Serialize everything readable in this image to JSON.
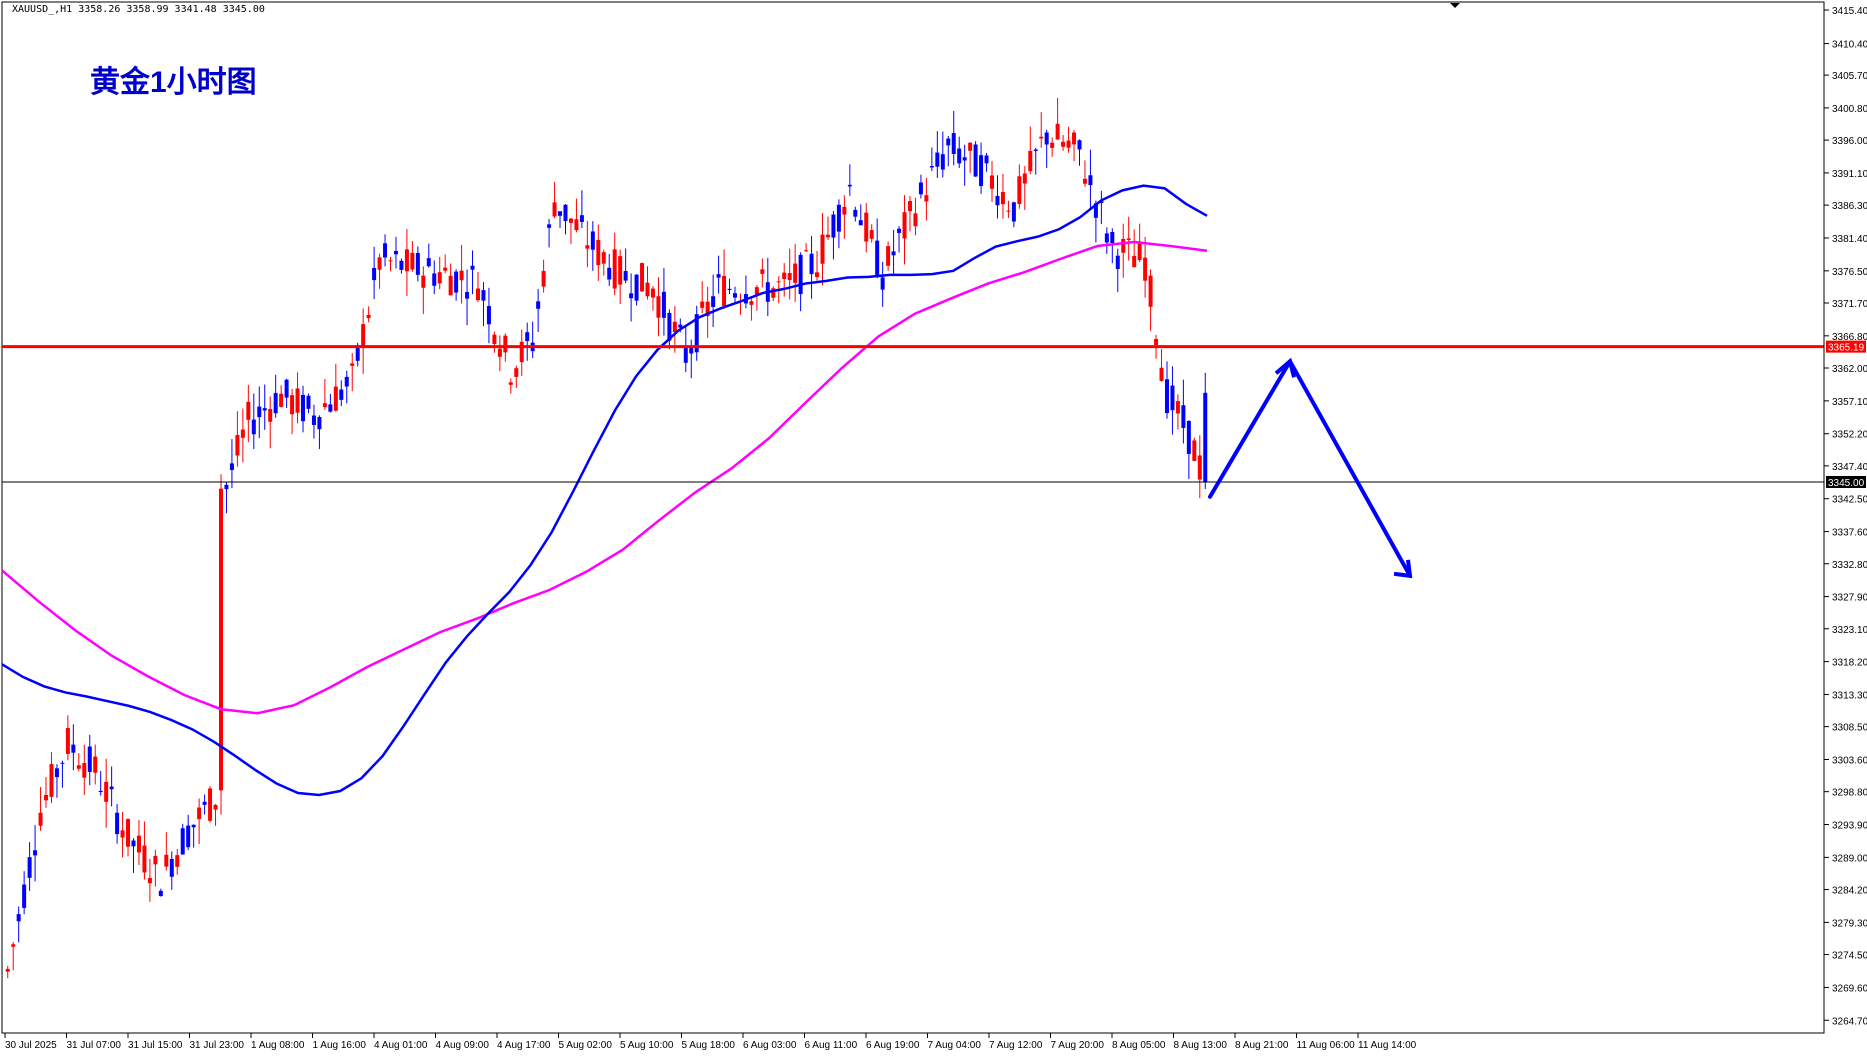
{
  "header": {
    "symbol_info": "XAUUSD_,H1  3358.26 3358.99 3341.48 3345.00",
    "overlay_title": "黄金1小时图"
  },
  "colors": {
    "bull": "#ff0000",
    "bear": "#0000ff",
    "ma_fast": "#0000ff",
    "ma_slow": "#ff00ff",
    "resistance": "#ff0000",
    "current_price_line": "#000000",
    "forecast_arrow": "#0000ff",
    "title_color": "#0000cc",
    "axis_text": "#000000"
  },
  "chart_data": {
    "type": "candlestick",
    "ylim": [
      3262.8,
      3416.6
    ],
    "y_ticks": [
      "3415.40",
      "3410.40",
      "3405.70",
      "3400.80",
      "3396.00",
      "3391.10",
      "3386.30",
      "3381.40",
      "3376.50",
      "3371.70",
      "3366.80",
      "3362.00",
      "3357.10",
      "3352.20",
      "3347.40",
      "3342.50",
      "3337.60",
      "3332.80",
      "3327.90",
      "3323.10",
      "3318.20",
      "3313.30",
      "3308.50",
      "3303.60",
      "3298.80",
      "3293.90",
      "3289.00",
      "3284.20",
      "3279.30",
      "3274.50",
      "3269.60",
      "3264.70"
    ],
    "x_ticks": [
      "30 Jul 2025",
      "31 Jul 07:00",
      "31 Jul 15:00",
      "31 Jul 23:00",
      "1 Aug 08:00",
      "1 Aug 16:00",
      "4 Aug 01:00",
      "4 Aug 09:00",
      "4 Aug 17:00",
      "5 Aug 02:00",
      "5 Aug 10:00",
      "5 Aug 18:00",
      "6 Aug 03:00",
      "6 Aug 11:00",
      "6 Aug 19:00",
      "7 Aug 04:00",
      "7 Aug 12:00",
      "7 Aug 20:00",
      "8 Aug 05:00",
      "8 Aug 13:00",
      "8 Aug 21:00",
      "11 Aug 06:00",
      "11 Aug 14:00"
    ],
    "resistance_level": 3365.19,
    "resistance_label": "3365.19",
    "current_price": 3345.0,
    "current_price_label": "3345.00",
    "ma_fast": [
      3317.8,
      3315.9,
      3314.5,
      3313.6,
      3313.0,
      3312.3,
      3311.6,
      3310.7,
      3309.5,
      3308.1,
      3306.3,
      3304.2,
      3302.0,
      3300.0,
      3298.6,
      3298.3,
      3298.9,
      3300.8,
      3304.1,
      3308.6,
      3313.4,
      3318.1,
      3322.0,
      3325.4,
      3328.6,
      3332.6,
      3337.5,
      3343.5,
      3349.7,
      3355.7,
      3360.8,
      3364.7,
      3367.6,
      3369.6,
      3370.9,
      3372.0,
      3373.2,
      3373.8,
      3374.6,
      3375.0,
      3375.5,
      3375.6,
      3375.9,
      3375.9,
      3376.0,
      3376.5,
      3378.4,
      3380.1,
      3380.9,
      3381.6,
      3382.7,
      3384.5,
      3387.0,
      3388.5,
      3389.2,
      3388.8,
      3386.5,
      3384.7
    ],
    "ma_slow": [
      3331.8,
      3327.2,
      3322.9,
      3319.1,
      3316.0,
      3313.2,
      3311.1,
      3310.5,
      3311.7,
      3314.4,
      3317.4,
      3320.0,
      3322.6,
      3324.6,
      3326.9,
      3328.9,
      3331.6,
      3334.9,
      3339.3,
      3343.5,
      3347.1,
      3351.5,
      3356.8,
      3362.0,
      3366.7,
      3370.1,
      3372.4,
      3374.6,
      3376.3,
      3378.3,
      3380.2,
      3380.8,
      3380.2,
      3379.5
    ],
    "forecast_path": [
      [
        3342.8,
        "11 Aug 15:00"
      ],
      [
        3363.0,
        "11 Aug 18:00"
      ],
      [
        3331.0,
        "11 Aug 22:00"
      ]
    ]
  }
}
